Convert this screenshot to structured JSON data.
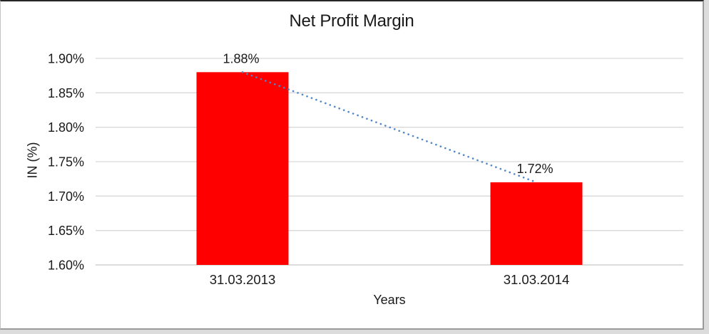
{
  "chart_data": {
    "type": "bar",
    "title": "Net Profit Margin",
    "xlabel": "Years",
    "ylabel": "IN (%)",
    "categories": [
      "31.03.2013",
      "31.03.2014"
    ],
    "values": [
      1.88,
      1.72
    ],
    "data_labels": [
      "1.88%",
      "1.72%"
    ],
    "ylim": [
      1.6,
      1.9
    ],
    "ytick_step": 0.05,
    "ytick_labels": [
      "1.60%",
      "1.65%",
      "1.70%",
      "1.75%",
      "1.80%",
      "1.85%",
      "1.90%"
    ],
    "grid": true,
    "legend": "none",
    "bar_color": "#FF0000",
    "gridline_color": "#D9D9D9",
    "axisline_color": "#C6C6C6",
    "text_color": "#1A1A1A",
    "trendline": {
      "style": "dotted",
      "color": "#4E86C8",
      "from": 1.88,
      "to": 1.72
    }
  }
}
